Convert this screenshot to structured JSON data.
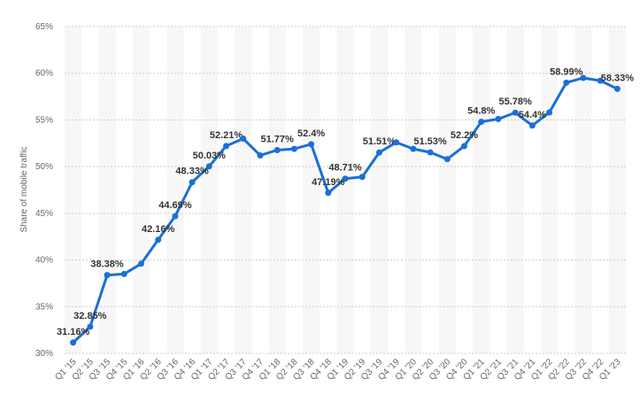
{
  "chart_data": {
    "type": "line",
    "y_label": "Share of mobile traffic",
    "categories": [
      "Q1 '15",
      "Q2 '15",
      "Q3 '15",
      "Q4 '15",
      "Q1 '16",
      "Q2 '16",
      "Q3 '16",
      "Q4 '16",
      "Q1 '17",
      "Q2 '17",
      "Q3 '17",
      "Q4 '17",
      "Q1 '18",
      "Q2 '18",
      "Q3 '18",
      "Q4 '18",
      "Q1 '19",
      "Q2 '19",
      "Q3 '19",
      "Q4 '19",
      "Q1 '20",
      "Q2 '20",
      "Q3 '20",
      "Q4 '20",
      "Q1 '21",
      "Q2 '21",
      "Q3 '21",
      "Q4 '21",
      "Q1 '22",
      "Q2 '22",
      "Q3 '22",
      "Q4 '22",
      "Q1 '23"
    ],
    "values": [
      31.16,
      32.85,
      38.38,
      38.5,
      39.6,
      42.16,
      44.69,
      48.33,
      50.03,
      52.21,
      53.0,
      51.2,
      51.77,
      51.9,
      52.4,
      47.19,
      48.71,
      48.9,
      51.51,
      52.6,
      51.9,
      51.53,
      50.8,
      52.2,
      54.8,
      55.1,
      55.78,
      54.4,
      55.8,
      58.99,
      59.5,
      59.2,
      58.33
    ],
    "value_labels": [
      "31.16%",
      "32.85%",
      "38.38%",
      null,
      null,
      "42.16%",
      "44.69%",
      "48.33%",
      "50.03%",
      "52.21%",
      null,
      null,
      "51.77%",
      null,
      "52.4%",
      "47.19%",
      "48.71%",
      null,
      "51.51%",
      null,
      null,
      "51.53%",
      null,
      "52.2%",
      "54.8%",
      null,
      "55.78%",
      "54.4%",
      null,
      "58.99%",
      null,
      null,
      "58.33%"
    ],
    "color": "#1a6fd8",
    "ylim": [
      30,
      65
    ],
    "yticks": [
      {
        "value": 30,
        "label": "30%"
      },
      {
        "value": 35,
        "label": "35%"
      },
      {
        "value": 40,
        "label": "40%"
      },
      {
        "value": 45,
        "label": "45%"
      },
      {
        "value": 50,
        "label": "50%"
      },
      {
        "value": 55,
        "label": "55%"
      },
      {
        "value": 60,
        "label": "60%"
      },
      {
        "value": 65,
        "label": "65%"
      }
    ],
    "grid": true
  }
}
